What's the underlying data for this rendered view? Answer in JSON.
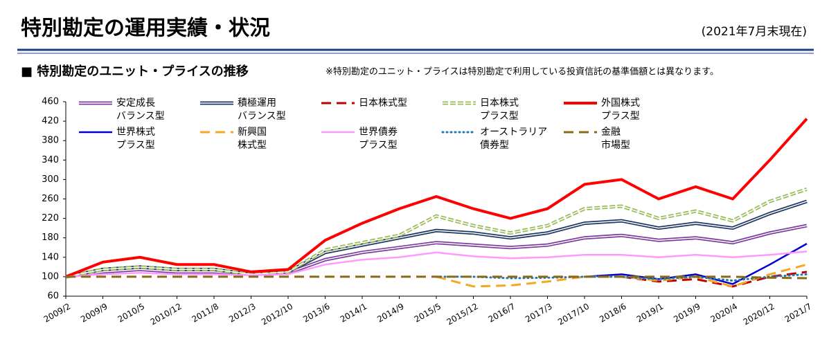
{
  "header": {
    "title": "特別勘定の運用実績・状況",
    "date": "(2021年7月末現在)"
  },
  "chart_data": {
    "type": "line",
    "title": "■ 特別勘定のユニット・プライスの推移",
    "note": "※特別勘定のユニット・プライスは特別勘定で利用している投資信託の基準価額とは異なります。",
    "categories": [
      "2009/2",
      "2009/9",
      "2010/5",
      "2010/12",
      "2011/8",
      "2012/3",
      "2012/10",
      "2013/6",
      "2014/1",
      "2014/9",
      "2015/5",
      "2015/12",
      "2016/7",
      "2017/3",
      "2017/10",
      "2018/6",
      "2019/1",
      "2019/9",
      "2020/4",
      "2020/12",
      "2021/7"
    ],
    "ylim": [
      60,
      460
    ],
    "yticks": [
      60,
      100,
      140,
      180,
      220,
      260,
      300,
      340,
      380,
      420,
      460
    ],
    "grid": false,
    "series": [
      {
        "name": "安定成長\nバランス型",
        "color": "#7b3f9e",
        "line_style": "double",
        "values": [
          100,
          110,
          115,
          110,
          110,
          105,
          108,
          135,
          150,
          160,
          170,
          165,
          160,
          165,
          180,
          185,
          175,
          180,
          170,
          190,
          205
        ]
      },
      {
        "name": "積極運用\nバランス型",
        "color": "#1f3864",
        "line_style": "double",
        "values": [
          100,
          115,
          120,
          115,
          115,
          105,
          110,
          150,
          165,
          180,
          195,
          190,
          180,
          190,
          210,
          215,
          200,
          210,
          200,
          230,
          255
        ]
      },
      {
        "name": "日本株式型",
        "color": "#c00000",
        "line_style": "dashed",
        "values": [
          null,
          null,
          null,
          null,
          null,
          null,
          null,
          null,
          null,
          null,
          null,
          null,
          null,
          null,
          null,
          100,
          90,
          95,
          80,
          100,
          110
        ]
      },
      {
        "name": "日本株式\nプラス型",
        "color": "#9bbb59",
        "line_style": "double-dashed",
        "values": [
          100,
          115,
          120,
          115,
          115,
          105,
          110,
          155,
          170,
          185,
          225,
          205,
          190,
          205,
          240,
          245,
          220,
          235,
          215,
          255,
          280
        ]
      },
      {
        "name": "外国株式\nプラス型",
        "color": "#ff0000",
        "line_style": "solid-thick",
        "values": [
          100,
          130,
          140,
          125,
          125,
          110,
          115,
          175,
          210,
          240,
          265,
          240,
          220,
          240,
          290,
          300,
          260,
          285,
          260,
          340,
          425
        ]
      },
      {
        "name": "世界株式\nプラス型",
        "color": "#0000cc",
        "line_style": "solid",
        "values": [
          null,
          null,
          null,
          null,
          null,
          null,
          null,
          null,
          null,
          null,
          null,
          null,
          null,
          null,
          100,
          105,
          95,
          105,
          85,
          125,
          168
        ]
      },
      {
        "name": "新興国\n株式型",
        "color": "#f5a623",
        "line_style": "dashed",
        "values": [
          null,
          null,
          null,
          null,
          null,
          null,
          null,
          null,
          null,
          null,
          100,
          80,
          82,
          90,
          100,
          100,
          92,
          100,
          80,
          105,
          125
        ]
      },
      {
        "name": "世界債券\nプラス型",
        "color": "#ff99ff",
        "line_style": "solid",
        "values": [
          100,
          105,
          108,
          105,
          105,
          103,
          105,
          125,
          135,
          140,
          150,
          142,
          138,
          140,
          145,
          145,
          140,
          145,
          140,
          145,
          152
        ]
      },
      {
        "name": "オーストラリア\n債券型",
        "color": "#1f77b4",
        "line_style": "dotted",
        "values": [
          null,
          null,
          null,
          null,
          null,
          null,
          null,
          null,
          null,
          null,
          100,
          100,
          97,
          98,
          100,
          100,
          95,
          100,
          92,
          100,
          105
        ]
      },
      {
        "name": "金融\n市場型",
        "color": "#8b6914",
        "line_style": "dashed",
        "values": [
          100,
          100,
          100,
          100,
          100,
          100,
          100,
          100,
          100,
          100,
          100,
          100,
          100,
          100,
          100,
          100,
          100,
          100,
          100,
          98,
          97
        ]
      }
    ]
  }
}
